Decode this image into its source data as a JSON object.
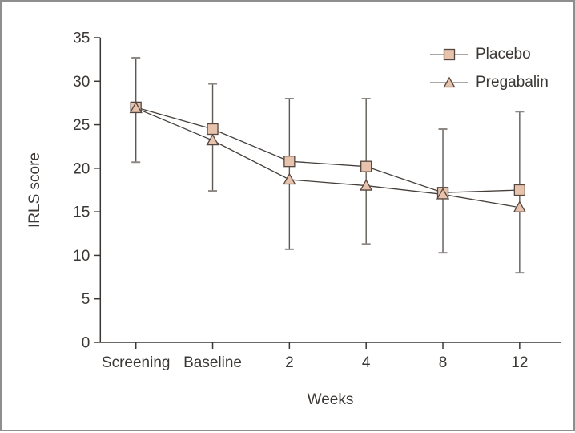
{
  "window": {
    "background": "#ffffff",
    "border_color": "#8e8e8e"
  },
  "colors": {
    "axis": "#3b3734",
    "text": "#3b3734",
    "series_line": "#46403c",
    "legend_line": "#8f8a86",
    "error_bar_stem": "#5f5955",
    "error_bar_cap": "#8d8884",
    "marker_fill": "#e7c2ad",
    "marker_edge": "#55463f"
  },
  "chart_data": {
    "type": "line",
    "title": "",
    "xlabel": "Weeks",
    "ylabel": "IRLS score",
    "categories": [
      "Screening",
      "Baseline",
      "2",
      "4",
      "8",
      "12"
    ],
    "series": [
      {
        "name": "Placebo",
        "marker": "square",
        "values": [
          27.0,
          24.5,
          20.8,
          20.2,
          17.2,
          17.5
        ]
      },
      {
        "name": "Pregabalin",
        "marker": "triangle",
        "values": [
          26.9,
          23.2,
          18.7,
          18.0,
          17.0,
          15.5
        ]
      }
    ],
    "error_bars": [
      {
        "category": "Screening",
        "low": 20.7,
        "high": 32.7
      },
      {
        "category": "Baseline",
        "low": 17.4,
        "high": 29.7
      },
      {
        "category": "2",
        "low": 10.7,
        "high": 28.0
      },
      {
        "category": "4",
        "low": 11.3,
        "high": 28.0
      },
      {
        "category": "8",
        "low": 10.3,
        "high": 24.5
      },
      {
        "category": "12",
        "low": 8.0,
        "high": 26.5
      }
    ],
    "ylim": [
      0,
      35
    ],
    "yticks": [
      0,
      5,
      10,
      15,
      20,
      25,
      30,
      35
    ],
    "grid": false,
    "legend_position": "top-right"
  }
}
